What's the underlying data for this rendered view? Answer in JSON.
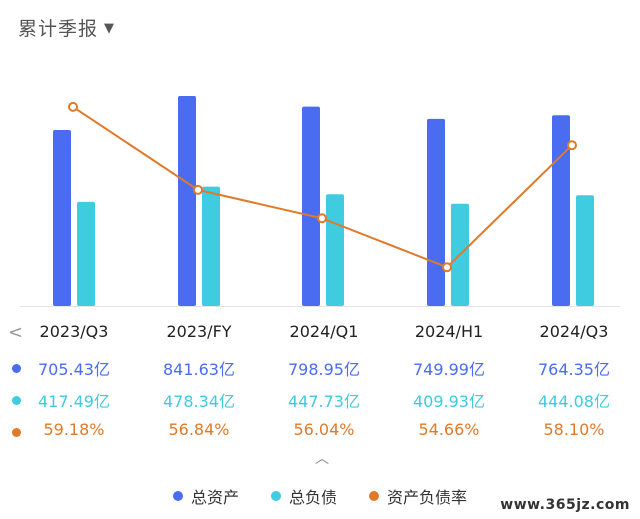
{
  "header": {
    "title": "累计季报"
  },
  "colors": {
    "assets": "#4a6cf0",
    "liabilities": "#3fcbe0",
    "ratio": "#e07a2b",
    "baseline": "#e5e5e5"
  },
  "chart_data": {
    "type": "bar",
    "categories": [
      "2023/Q3",
      "2023/FY",
      "2024/Q1",
      "2024/H1",
      "2024/Q3"
    ],
    "series": [
      {
        "name": "总资产",
        "values": [
          705.43,
          841.63,
          798.95,
          749.99,
          764.35
        ],
        "labels": [
          "705.43亿",
          "841.63亿",
          "798.95亿",
          "749.99亿",
          "764.35亿"
        ]
      },
      {
        "name": "总负债",
        "values": [
          417.49,
          478.34,
          447.73,
          409.93,
          444.08
        ],
        "labels": [
          "417.49亿",
          "478.34亿",
          "447.73亿",
          "409.93亿",
          "444.08亿"
        ]
      },
      {
        "name": "资产负债率",
        "type": "line",
        "values": [
          59.18,
          56.84,
          56.04,
          54.66,
          58.1
        ],
        "labels": [
          "59.18%",
          "56.84%",
          "56.04%",
          "54.66%",
          "58.10%"
        ]
      }
    ],
    "bar_ylim": [
      0,
      841.63
    ],
    "line_ylim": [
      54.3,
      59.6
    ]
  },
  "legend": {
    "assets": "总资产",
    "liabilities": "总负债",
    "ratio": "资产负债率"
  },
  "icons": {
    "prev": "chevron-left-icon",
    "collapse": "chevron-up-icon",
    "dropdown": "caret-down-icon"
  },
  "watermark": "www.365jz.com"
}
